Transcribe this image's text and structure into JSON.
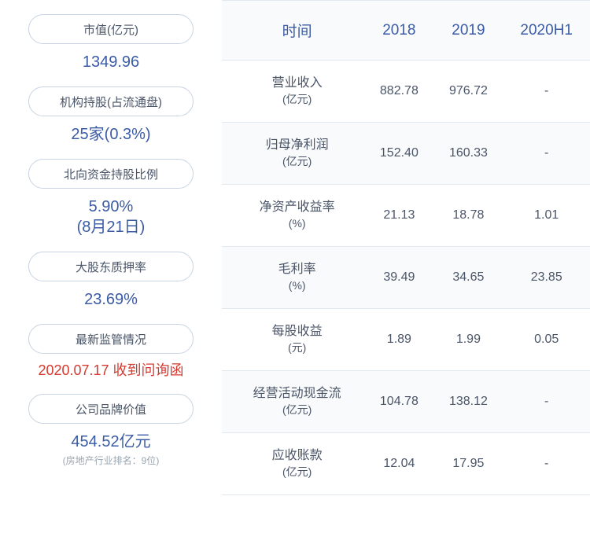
{
  "left": {
    "items": [
      {
        "label": "市值(亿元)",
        "value": "1349.96",
        "color": "blue"
      },
      {
        "label": "机构持股(占流通盘)",
        "value": "25家(0.3%)",
        "color": "blue"
      },
      {
        "label": "北向资金持股比例",
        "value": "5.90%\n(8月21日)",
        "color": "blue"
      },
      {
        "label": "大股东质押率",
        "value": "23.69%",
        "color": "blue"
      },
      {
        "label": "最新监管情况",
        "value": "2020.07.17 收到问询函",
        "color": "red"
      },
      {
        "label": "公司品牌价值",
        "value": "454.52亿元",
        "sub": "(房地产行业排名：9位)",
        "color": "blue"
      }
    ]
  },
  "table": {
    "header_label": "时间",
    "columns": [
      "2018",
      "2019",
      "2020H1"
    ],
    "rows": [
      {
        "label": "营业收入",
        "unit": "(亿元)",
        "values": [
          "882.78",
          "976.72",
          "-"
        ]
      },
      {
        "label": "归母净利润",
        "unit": "(亿元)",
        "values": [
          "152.40",
          "160.33",
          "-"
        ]
      },
      {
        "label": "净资产收益率",
        "unit": "(%)",
        "values": [
          "21.13",
          "18.78",
          "1.01"
        ]
      },
      {
        "label": "毛利率",
        "unit": "(%)",
        "values": [
          "39.49",
          "34.65",
          "23.85"
        ]
      },
      {
        "label": "每股收益",
        "unit": "(元)",
        "values": [
          "1.89",
          "1.99",
          "0.05"
        ]
      },
      {
        "label": "经营活动现金流",
        "unit": "(亿元)",
        "values": [
          "104.78",
          "138.12",
          "-"
        ]
      },
      {
        "label": "应收账款",
        "unit": "(亿元)",
        "values": [
          "12.04",
          "17.95",
          "-"
        ]
      }
    ]
  },
  "style": {
    "pill_border": "#c8d4e2",
    "label_color": "#4a5568",
    "value_blue": "#3b5ba5",
    "value_red": "#d43a2f",
    "sub_color": "#9aa5b1",
    "header_bg": "#f9fafb",
    "row_border": "#e2e8f0"
  }
}
